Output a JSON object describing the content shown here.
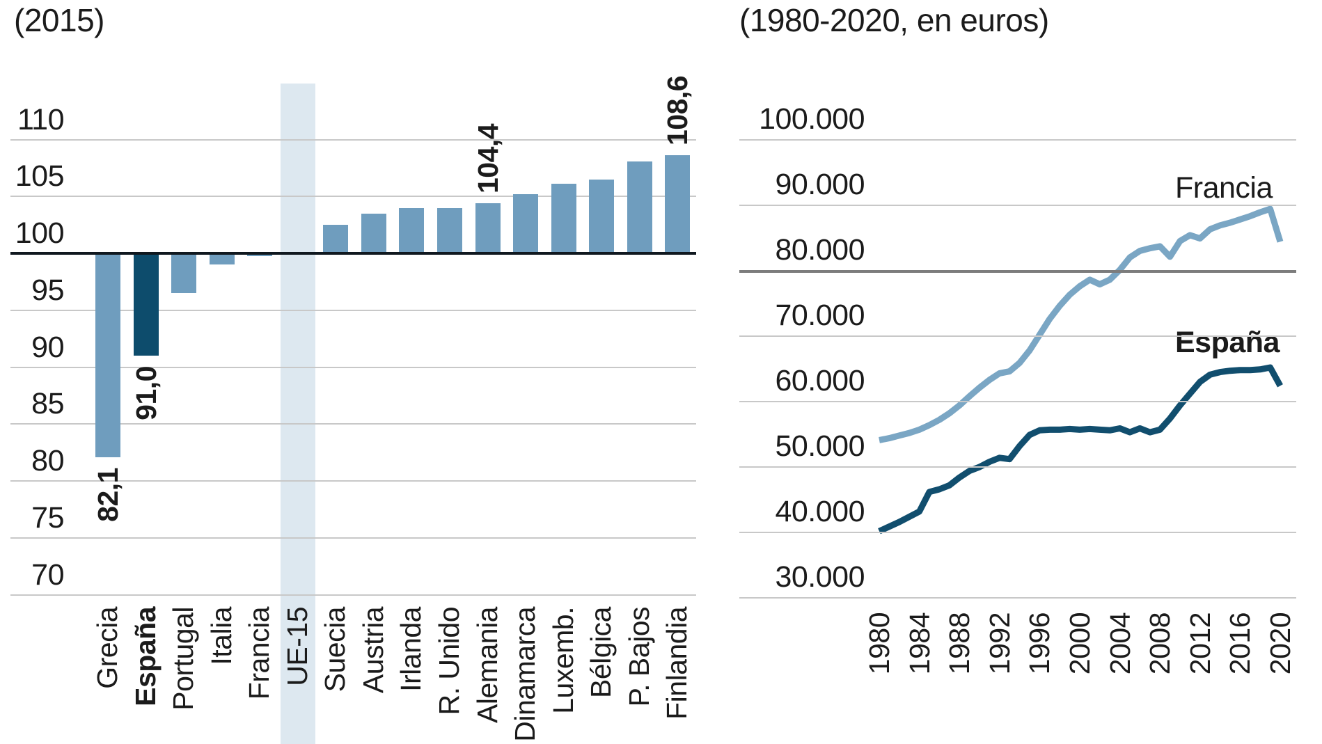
{
  "colors": {
    "bar_light": "#6f9dbe",
    "bar_dark": "#0d4c6c",
    "highlight_band": "#dde8f0",
    "gridline": "#c8c8c8",
    "gridline_emphasis": "#7c7c7c",
    "baseline": "#10181f",
    "line_francia": "#7aa6c4",
    "line_espana": "#114e6e",
    "text": "#1b1b1b"
  },
  "chart_data": [
    {
      "type": "bar",
      "title": "(2015)",
      "ylabel": "",
      "xlabel": "",
      "ylim": [
        70,
        112
      ],
      "y_ticks": [
        110,
        105,
        100,
        95,
        90,
        85,
        80,
        75,
        70
      ],
      "baseline_value": 100,
      "highlight_band_category": "UE-15",
      "grid": "on",
      "bars": [
        {
          "label": "Grecia",
          "value": 82.1,
          "value_label": "82,1"
        },
        {
          "label": "España",
          "value": 91.0,
          "value_label": "91,0",
          "dark": true,
          "bold": true
        },
        {
          "label": "Portugal",
          "value": 96.5
        },
        {
          "label": "Italia",
          "value": 99.0
        },
        {
          "label": "Francia",
          "value": 99.8
        },
        {
          "label": "UE-15",
          "value": 100.0,
          "band": true
        },
        {
          "label": "Suecia",
          "value": 102.5
        },
        {
          "label": "Austria",
          "value": 103.5
        },
        {
          "label": "Irlanda",
          "value": 104.0
        },
        {
          "label": "R. Unido",
          "value": 104.0
        },
        {
          "label": "Alemania",
          "value": 104.4,
          "value_label": "104,4"
        },
        {
          "label": "Dinamarca",
          "value": 105.2
        },
        {
          "label": "Luxemb.",
          "value": 106.1
        },
        {
          "label": "Bélgica",
          "value": 106.5
        },
        {
          "label": "P. Bajos",
          "value": 108.1
        },
        {
          "label": "Finlandia",
          "value": 108.6,
          "value_label": "108,6"
        }
      ]
    },
    {
      "type": "line",
      "title": "(1980-2020, en euros)",
      "ylabel": "",
      "xlabel": "",
      "ylim": [
        30000,
        100000
      ],
      "x_range": [
        1980,
        2020
      ],
      "grid": "on",
      "legend_position": "end-of-line",
      "y_ticks": [
        {
          "label": "100.000",
          "value": 100000
        },
        {
          "label": "90.000",
          "value": 90000
        },
        {
          "label": "80.000",
          "value": 80000
        },
        {
          "label": "70.000",
          "value": 70000
        },
        {
          "label": "60.000",
          "value": 60000
        },
        {
          "label": "50.000",
          "value": 50000
        },
        {
          "label": "40.000",
          "value": 40000
        },
        {
          "label": "30.000",
          "value": 30000
        }
      ],
      "emphasized_gridline_value": 80000,
      "x_ticks": [
        1980,
        1984,
        1988,
        1992,
        1996,
        2000,
        2004,
        2008,
        2012,
        2016,
        2020
      ],
      "years_start": 1980,
      "series": [
        {
          "name": "Francia",
          "color": "#7aa6c4",
          "bold": false,
          "values": [
            54100,
            54400,
            54800,
            55200,
            55700,
            56400,
            57200,
            58200,
            59400,
            60800,
            62100,
            63300,
            64300,
            64600,
            65900,
            67800,
            70200,
            72600,
            74600,
            76300,
            77600,
            78600,
            77900,
            78600,
            80100,
            82000,
            83000,
            83400,
            83700,
            82100,
            84500,
            85400,
            84900,
            86300,
            86900,
            87300,
            87800,
            88300,
            88900,
            89400,
            84400
          ]
        },
        {
          "name": "España",
          "color": "#114e6e",
          "bold": true,
          "values": [
            40200,
            40900,
            41600,
            42400,
            43200,
            46200,
            46600,
            47200,
            48400,
            49400,
            50000,
            50800,
            51400,
            51200,
            53200,
            54900,
            55600,
            55700,
            55700,
            55800,
            55700,
            55800,
            55700,
            55600,
            55900,
            55300,
            55900,
            55300,
            55700,
            57400,
            59400,
            61200,
            63000,
            64100,
            64500,
            64700,
            64800,
            64800,
            64900,
            65200,
            62400
          ]
        }
      ]
    }
  ]
}
